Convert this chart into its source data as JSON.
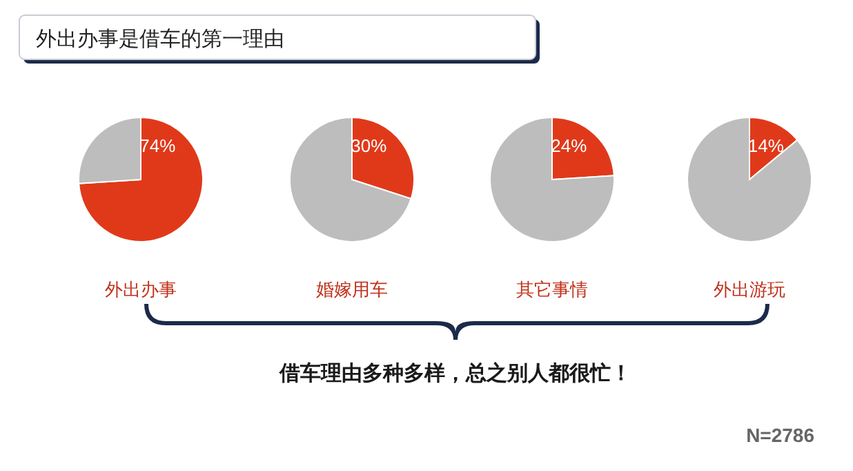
{
  "chart_data": [
    {
      "type": "other",
      "title": "外出办事是借车的第一理由"
    },
    {
      "type": "pie",
      "title": "外出办事",
      "categories": [
        null,
        null
      ],
      "values": [
        74,
        26
      ],
      "colors": [
        "#e0391a",
        "#bdbdbd"
      ],
      "value_labels": [
        "74%",
        null
      ]
    },
    {
      "type": "pie",
      "title": "婚嫁用车",
      "categories": [
        null,
        null
      ],
      "values": [
        30,
        70
      ],
      "colors": [
        "#e0391a",
        "#bdbdbd"
      ],
      "value_labels": [
        "30%",
        null
      ]
    },
    {
      "type": "pie",
      "title": "其它事情",
      "categories": [
        null,
        null
      ],
      "values": [
        24,
        76
      ],
      "colors": [
        "#e0391a",
        "#bdbdbd"
      ],
      "value_labels": [
        "24%",
        null
      ]
    },
    {
      "type": "pie",
      "title": "外出游玩",
      "categories": [
        null,
        null
      ],
      "values": [
        14,
        86
      ],
      "colors": [
        "#e0391a",
        "#bdbdbd"
      ],
      "value_labels": [
        "14%",
        null
      ]
    },
    {
      "type": "other",
      "annotations": [
        "借车理由多种多样，总之别人都很忙！",
        "N=2786"
      ]
    }
  ]
}
